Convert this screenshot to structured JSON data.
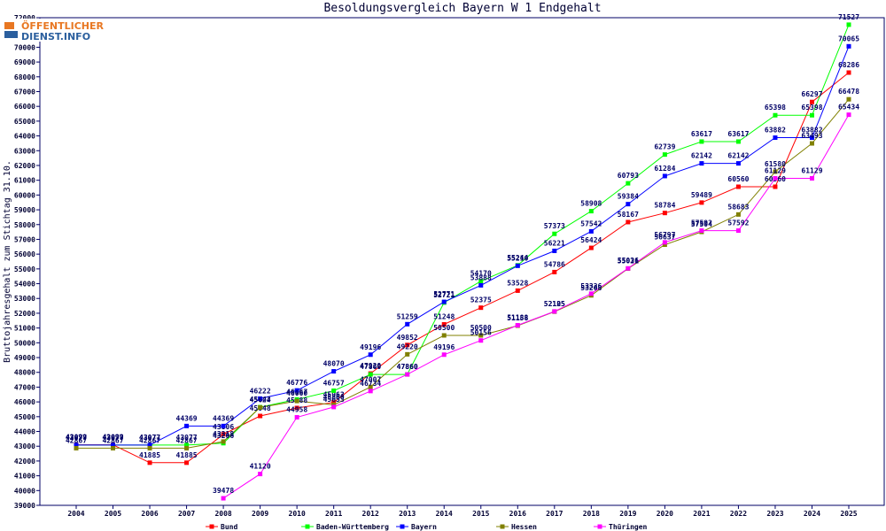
{
  "logo": {
    "line1": "ÖFFENTLICHER",
    "line2": "DIENST.INFO",
    "colors": {
      "orange": "#e87722",
      "blue": "#2b5f9e"
    }
  },
  "chart_data": {
    "type": "line",
    "title": "Besoldungsvergleich Bayern W 1 Endgehalt",
    "ylabel": "Bruttojahresgehalt zum Stichtag 31.10.",
    "xlabel": "",
    "ylim": [
      39000,
      72000
    ],
    "ytick_step": 1000,
    "grid": false,
    "legend_position": "bottom",
    "categories": [
      "2004",
      "2005",
      "2006",
      "2007",
      "2008",
      "2009",
      "2010",
      "2011",
      "2012",
      "2013",
      "2014",
      "2015",
      "2016",
      "2017",
      "2018",
      "2019",
      "2020",
      "2021",
      "2022",
      "2023",
      "2024",
      "2025"
    ],
    "series": [
      {
        "name": "Bund",
        "color": "#ff0000",
        "values": [
          43099,
          43099,
          41885,
          41885,
          43806,
          45048,
          45588,
          45963,
          47920,
          49852,
          51248,
          52375,
          53528,
          54786,
          56424,
          58167,
          58784,
          59489,
          60560,
          60560,
          66297,
          68286
        ]
      },
      {
        "name": "Baden-Württemberg",
        "color": "#00ff00",
        "values": [
          43077,
          43077,
          43077,
          43077,
          43206,
          45643,
          46167,
          46757,
          47860,
          47860,
          52721,
          54170,
          55244,
          57373,
          58908,
          60793,
          62739,
          63617,
          63617,
          65398,
          65398,
          71527
        ]
      },
      {
        "name": "Bayern",
        "color": "#0000ff",
        "values": [
          43077,
          43077,
          43077,
          44369,
          44369,
          46222,
          46776,
          48070,
          49196,
          51259,
          52771,
          53888,
          55210,
          56221,
          57542,
          59384,
          61284,
          62142,
          62142,
          63882,
          63882,
          70065
        ]
      },
      {
        "name": "Hessen",
        "color": "#808000",
        "values": [
          42867,
          42867,
          42867,
          42867,
          43318,
          45624,
          46060,
          45800,
          47007,
          49220,
          50500,
          50500,
          51158,
          52105,
          53208,
          55021,
          56637,
          57504,
          58683,
          61580,
          63493,
          66478
        ]
      },
      {
        "name": "Thüringen",
        "color": "#ff00ff",
        "values": [
          null,
          null,
          null,
          null,
          39478,
          41120,
          44958,
          45653,
          46734,
          47860,
          49196,
          50156,
          51188,
          52125,
          53326,
          55036,
          56797,
          57592,
          57592,
          61129,
          61129,
          65434
        ]
      }
    ]
  }
}
